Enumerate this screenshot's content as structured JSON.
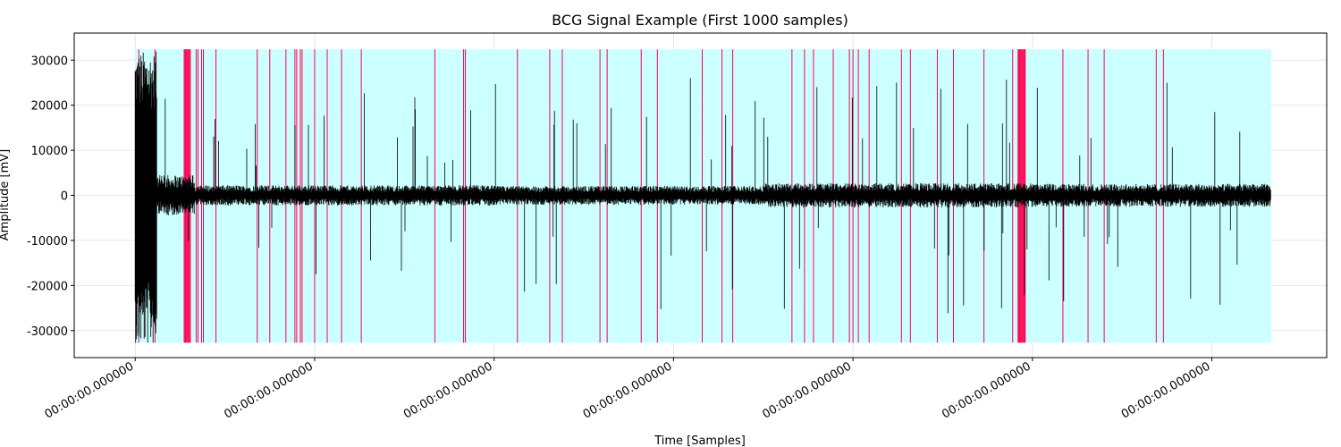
{
  "chart_data": {
    "type": "line",
    "title": "BCG Signal Example (First 1000 samples)",
    "xlabel": "Time [Samples]",
    "ylabel": "Amplitude [mV]",
    "xlim": [
      -0.34,
      6.64
    ],
    "ylim": [
      -36000,
      36000
    ],
    "yticks": [
      -30000,
      -20000,
      -10000,
      0,
      10000,
      20000,
      30000
    ],
    "xticks": [
      0,
      1,
      2,
      3,
      4,
      5,
      6
    ],
    "xtick_labels": [
      "00:00:00.000000",
      "00:00:00.000000",
      "00:00:00.000000",
      "00:00:00.000000",
      "00:00:00.000000",
      "00:00:00.000000",
      "00:00:00.000000"
    ],
    "grid": true,
    "signal_color": "#000000",
    "background_band": {
      "x": [
        0,
        6.33
      ],
      "y": [
        -32700,
        32400
      ],
      "color": "#ccffff"
    },
    "highlight_color": "#ff0050",
    "highlight_lines": [
      0.02,
      0.11,
      0.28,
      0.34,
      0.35,
      0.37,
      0.38,
      0.45,
      0.68,
      0.75,
      0.84,
      0.89,
      0.9,
      0.92,
      0.93,
      1.0,
      1.07,
      1.15,
      1.26,
      1.67,
      1.83,
      1.84,
      2.13,
      2.31,
      2.38,
      2.59,
      2.63,
      2.82,
      2.91,
      3.16,
      3.27,
      3.33,
      3.66,
      3.73,
      3.78,
      3.89,
      3.98,
      4.0,
      4.03,
      4.09,
      4.27,
      4.32,
      4.47,
      4.56,
      4.73,
      4.89,
      4.92,
      4.93,
      4.96,
      5.17,
      5.31,
      5.4,
      5.69,
      5.73
    ],
    "highlight_blocks": [
      [
        0.27,
        0.31
      ],
      [
        4.92,
        4.96
      ]
    ],
    "segments": [
      {
        "x": [
          0.0,
          0.12
        ],
        "amp": 32000,
        "base": 1500
      },
      {
        "x": [
          0.12,
          0.33
        ],
        "amp": 20000,
        "base": 3000
      },
      {
        "x": [
          0.33,
          2.0
        ],
        "amp": 16000,
        "base": 1500
      },
      {
        "x": [
          2.0,
          3.5
        ],
        "amp": 18000,
        "base": 1400
      },
      {
        "x": [
          3.5,
          5.0
        ],
        "amp": 18000,
        "base": 1800
      },
      {
        "x": [
          5.0,
          6.33
        ],
        "amp": 17000,
        "base": 1700
      }
    ]
  }
}
